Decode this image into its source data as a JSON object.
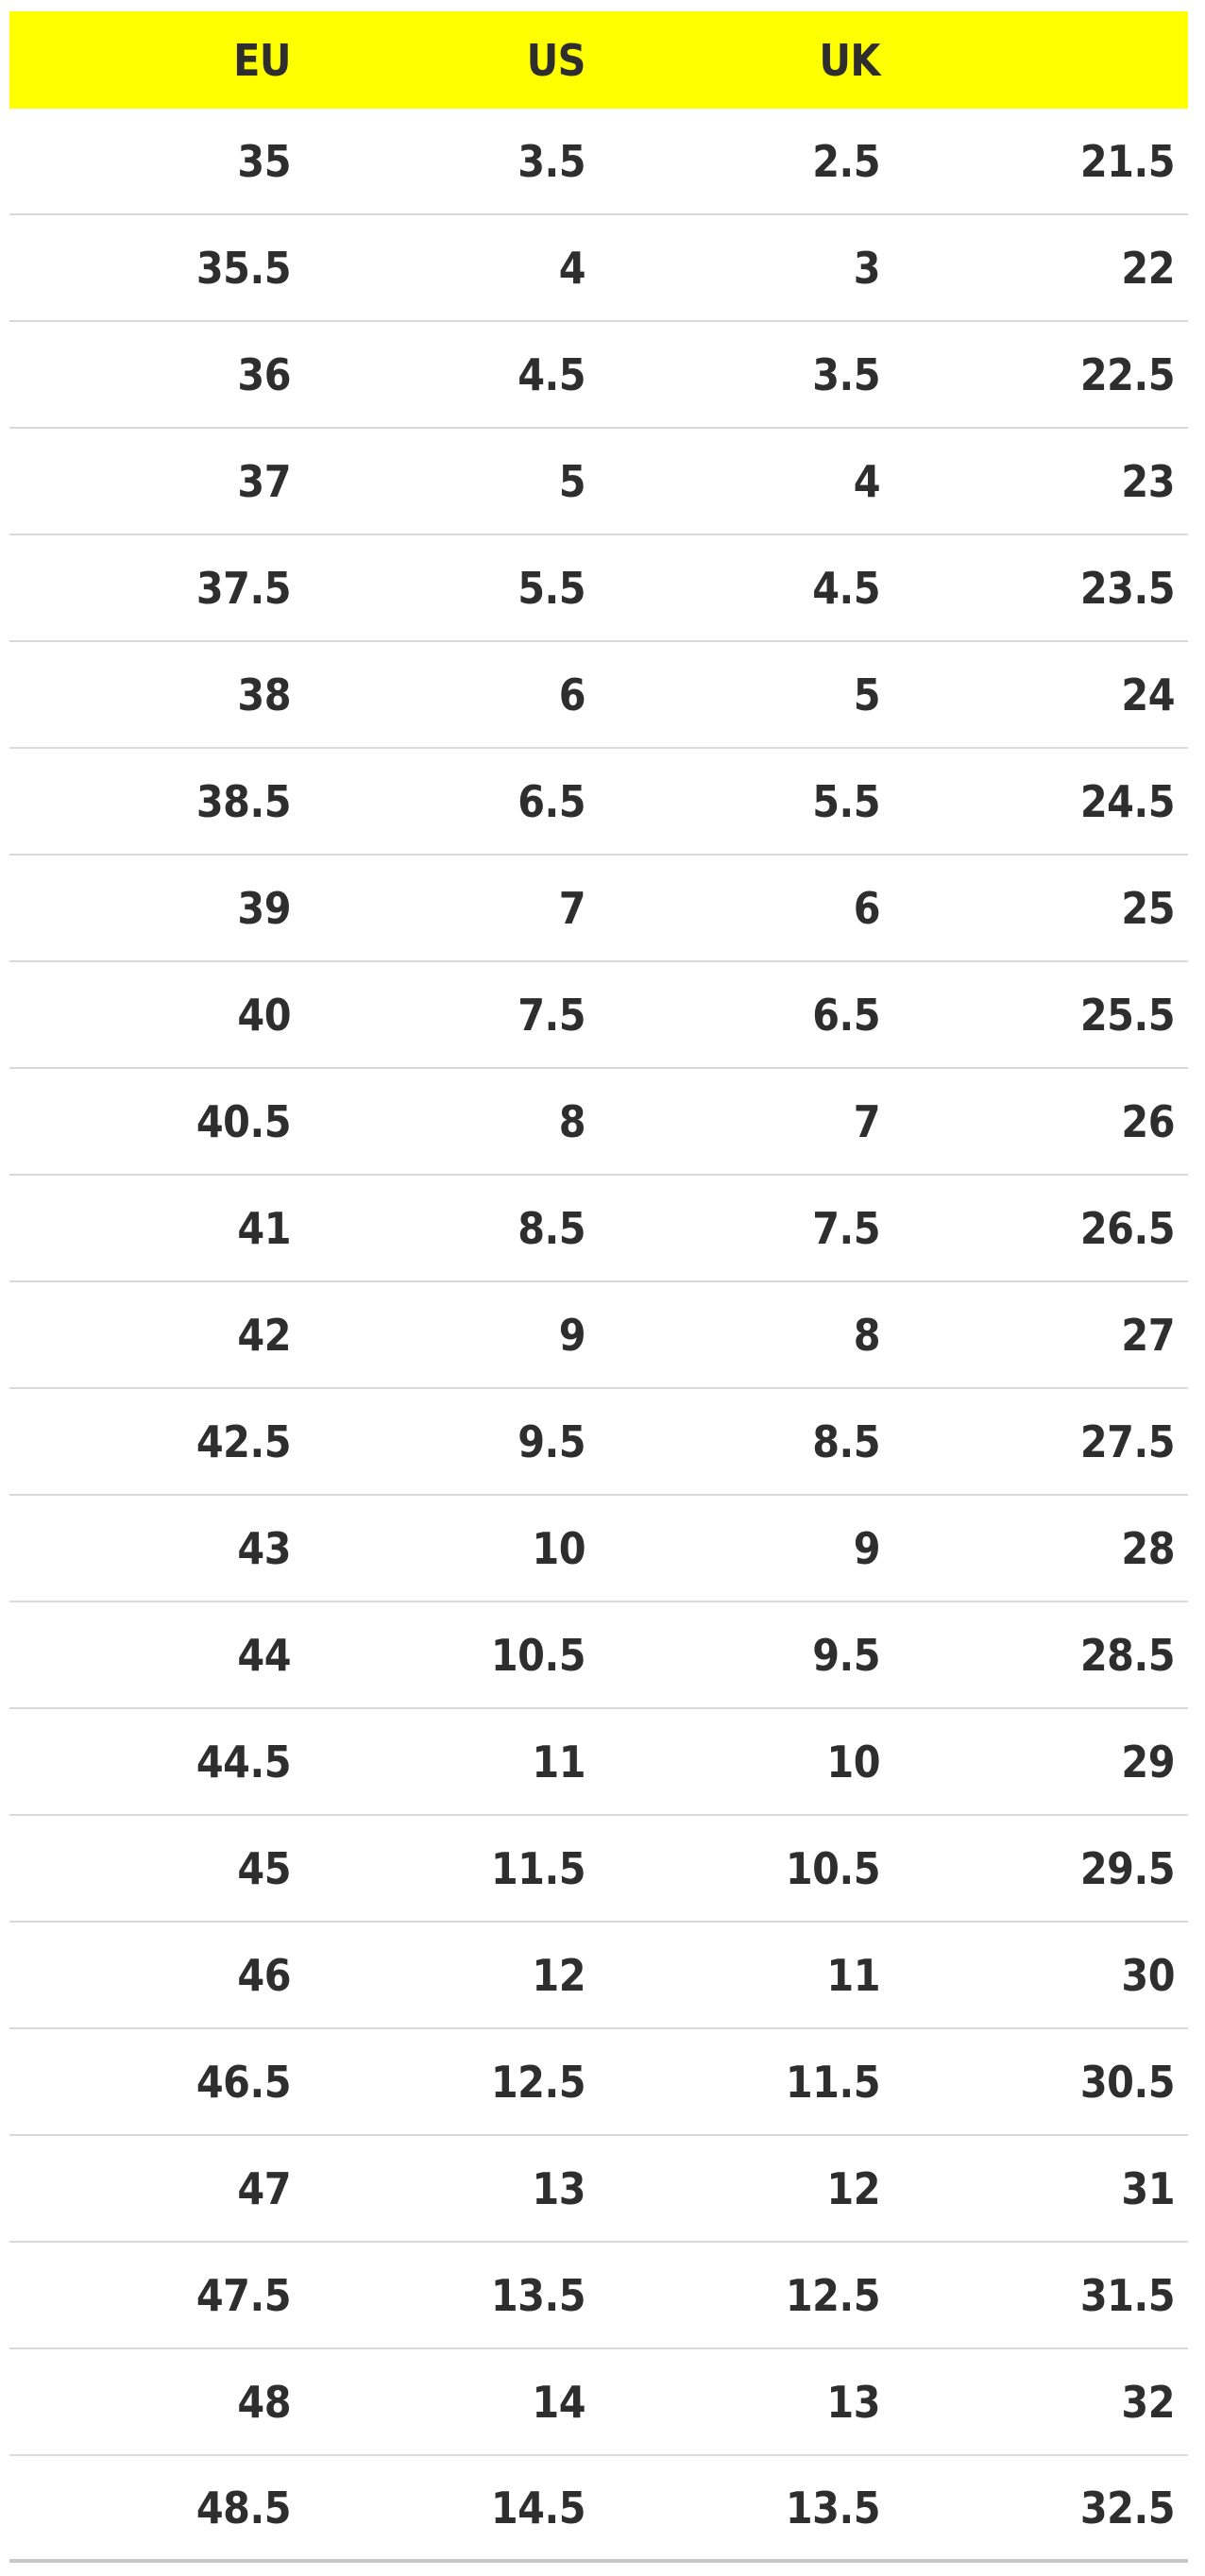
{
  "chart_data": {
    "type": "table",
    "title": "",
    "columns": [
      "EU",
      "US",
      "UK",
      ""
    ],
    "rows": [
      [
        "35",
        "3.5",
        "2.5",
        "21.5"
      ],
      [
        "35.5",
        "4",
        "3",
        "22"
      ],
      [
        "36",
        "4.5",
        "3.5",
        "22.5"
      ],
      [
        "37",
        "5",
        "4",
        "23"
      ],
      [
        "37.5",
        "5.5",
        "4.5",
        "23.5"
      ],
      [
        "38",
        "6",
        "5",
        "24"
      ],
      [
        "38.5",
        "6.5",
        "5.5",
        "24.5"
      ],
      [
        "39",
        "7",
        "6",
        "25"
      ],
      [
        "40",
        "7.5",
        "6.5",
        "25.5"
      ],
      [
        "40.5",
        "8",
        "7",
        "26"
      ],
      [
        "41",
        "8.5",
        "7.5",
        "26.5"
      ],
      [
        "42",
        "9",
        "8",
        "27"
      ],
      [
        "42.5",
        "9.5",
        "8.5",
        "27.5"
      ],
      [
        "43",
        "10",
        "9",
        "28"
      ],
      [
        "44",
        "10.5",
        "9.5",
        "28.5"
      ],
      [
        "44.5",
        "11",
        "10",
        "29"
      ],
      [
        "45",
        "11.5",
        "10.5",
        "29.5"
      ],
      [
        "46",
        "12",
        "11",
        "30"
      ],
      [
        "46.5",
        "12.5",
        "11.5",
        "30.5"
      ],
      [
        "47",
        "13",
        "12",
        "31"
      ],
      [
        "47.5",
        "13.5",
        "12.5",
        "31.5"
      ],
      [
        "48",
        "14",
        "13",
        "32"
      ],
      [
        "48.5",
        "14.5",
        "13.5",
        "32.5"
      ]
    ],
    "layout": {
      "header_position": "top",
      "column_alignment": "right",
      "grid": "horizontal-only"
    }
  },
  "colors": {
    "header_bg": "#ffff00",
    "text": "#2e2e2e",
    "row_border": "#d9d9d9",
    "bottom_border": "#c8c8c8",
    "page_bg": "#ffffff"
  }
}
